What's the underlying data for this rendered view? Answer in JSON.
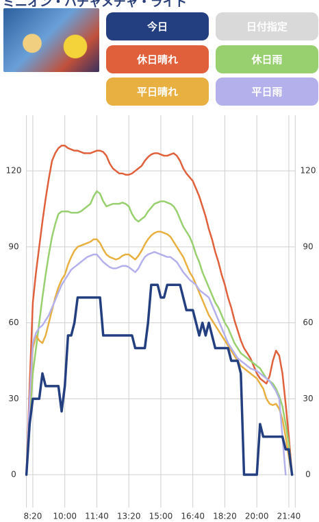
{
  "header": {
    "title": "ミニオン・ハチャメチャ・ライド",
    "date_button": "日付指定"
  },
  "chart_data": {
    "type": "line",
    "x": [
      480,
      490,
      500,
      510,
      520,
      530,
      540,
      550,
      560,
      570,
      580,
      590,
      600,
      610,
      620,
      630,
      640,
      650,
      660,
      670,
      680,
      690,
      700,
      710,
      720,
      730,
      740,
      750,
      760,
      770,
      780,
      790,
      800,
      810,
      820,
      830,
      840,
      850,
      860,
      870,
      880,
      890,
      900,
      910,
      920,
      930,
      940,
      950,
      960,
      970,
      980,
      990,
      1000,
      1010,
      1020,
      1030,
      1040,
      1050,
      1060,
      1070,
      1080,
      1090,
      1100,
      1110,
      1120,
      1130,
      1140,
      1150,
      1160,
      1170,
      1180,
      1190,
      1200,
      1210,
      1220,
      1230,
      1240,
      1250,
      1260,
      1270,
      1280,
      1290,
      1300,
      1310
    ],
    "xlim": [
      480,
      1320
    ],
    "xticks": [
      {
        "value": 500,
        "label": "8:20"
      },
      {
        "value": 600,
        "label": "10:00"
      },
      {
        "value": 700,
        "label": "11:40"
      },
      {
        "value": 800,
        "label": "13:20"
      },
      {
        "value": 900,
        "label": "15:00"
      },
      {
        "value": 1000,
        "label": "16:40"
      },
      {
        "value": 1100,
        "label": "18:20"
      },
      {
        "value": 1200,
        "label": "20:00"
      },
      {
        "value": 1300,
        "label": "21:40"
      }
    ],
    "ylim": [
      -13,
      142
    ],
    "yticks": [
      0,
      30,
      60,
      90,
      120
    ],
    "grid": true,
    "series": [
      {
        "name": "今日",
        "color": "#233f80",
        "values": [
          0,
          20,
          30,
          30,
          30,
          40,
          35,
          35,
          35,
          35,
          35,
          25,
          35,
          55,
          55,
          60,
          70,
          70,
          70,
          70,
          70,
          70,
          70,
          70,
          55,
          55,
          55,
          55,
          55,
          55,
          55,
          55,
          55,
          55,
          50,
          50,
          50,
          50,
          60,
          75,
          75,
          75,
          70,
          70,
          75,
          75,
          75,
          75,
          75,
          70,
          65,
          65,
          65,
          60,
          55,
          60,
          55,
          60,
          55,
          50,
          50,
          50,
          50,
          50,
          45,
          45,
          45,
          40,
          0,
          0,
          0,
          0,
          0,
          20,
          15,
          15,
          15,
          15,
          15,
          15,
          15,
          10,
          10,
          0
        ]
      },
      {
        "name": "休日晴れ",
        "color": "#e0603c",
        "values": [
          0,
          35,
          68,
          80,
          90,
          100,
          109,
          117,
          124,
          127,
          129,
          130,
          130,
          129,
          128.5,
          128,
          128,
          127.5,
          127,
          127,
          127,
          127.5,
          128,
          128,
          127.5,
          126,
          123,
          121,
          120,
          119,
          119,
          118.5,
          118.5,
          119,
          120,
          121,
          122,
          124,
          125.5,
          126.5,
          127,
          127,
          126.5,
          126,
          126,
          126.5,
          127,
          126,
          124,
          121,
          119,
          117.5,
          116,
          113,
          110,
          106,
          102,
          97,
          93,
          88,
          84,
          79,
          75,
          70,
          66,
          61,
          57,
          53,
          50,
          48,
          46,
          43,
          40,
          38,
          37,
          36,
          39,
          45,
          49,
          47,
          40,
          28,
          15,
          0
        ]
      },
      {
        "name": "休日雨",
        "color": "#98d070",
        "values": [
          0,
          22,
          40,
          50,
          60,
          70,
          79,
          87,
          94,
          99,
          103,
          104,
          104,
          104,
          103.5,
          103.5,
          103.5,
          104,
          105,
          106,
          107,
          110,
          112,
          111,
          108,
          106,
          106.5,
          107,
          107,
          107,
          107.5,
          107,
          106,
          103,
          101,
          100,
          101,
          102,
          104,
          105.5,
          107,
          107.5,
          108,
          108,
          107.5,
          107,
          106,
          104,
          101,
          98,
          96,
          94,
          91,
          87,
          84,
          80,
          77,
          74,
          71,
          68,
          66,
          63,
          60,
          58,
          55,
          52,
          50,
          48,
          47,
          46,
          45,
          44,
          43,
          42,
          40,
          38,
          37,
          36,
          34,
          31,
          27,
          20,
          12,
          0
        ]
      },
      {
        "name": "平日晴れ",
        "color": "#e8b040",
        "values": [
          0,
          28,
          50,
          55,
          53,
          52,
          55,
          60,
          65,
          70,
          74,
          77,
          79,
          83,
          86,
          88.5,
          90,
          90.5,
          91,
          91.5,
          92,
          93,
          93,
          91.5,
          89,
          87,
          86,
          85.5,
          85,
          85.5,
          86.5,
          87,
          87,
          86,
          85,
          86.5,
          88.5,
          91,
          93,
          94.5,
          95.5,
          96,
          96,
          95.5,
          95,
          94,
          92,
          90,
          88,
          86,
          83,
          80,
          78,
          75,
          72,
          69,
          66,
          63,
          61,
          59,
          57,
          55,
          53,
          51,
          49,
          47,
          45,
          43,
          42,
          41,
          40,
          39,
          38,
          36,
          34,
          30,
          28,
          27.5,
          28,
          26,
          22,
          15,
          7,
          0
        ]
      },
      {
        "name": "平日雨",
        "color": "#b4b0ec",
        "values": [
          0,
          30,
          52,
          56,
          58,
          59,
          61,
          63,
          66,
          69,
          72,
          75,
          77,
          79,
          81,
          82,
          83,
          84,
          85,
          86,
          86.5,
          87,
          87,
          85.5,
          84,
          83,
          82,
          81.5,
          81.5,
          82,
          82.5,
          82.5,
          82,
          81,
          80,
          81.5,
          84,
          86,
          87,
          87.5,
          88,
          87.5,
          87,
          86.5,
          86,
          86,
          85,
          84,
          82,
          80,
          78.5,
          77,
          76,
          75,
          73,
          72,
          71,
          70,
          67,
          64,
          61,
          58,
          55,
          52,
          50,
          48,
          46,
          45,
          44,
          43,
          42,
          41.5,
          41,
          40,
          39,
          38,
          37,
          35,
          33,
          30,
          15,
          0,
          null,
          null
        ]
      }
    ]
  }
}
